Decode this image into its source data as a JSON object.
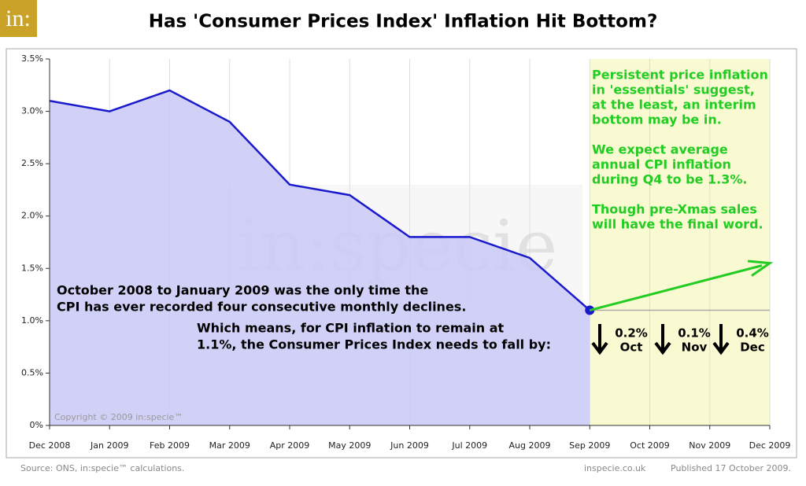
{
  "logo": "in:",
  "chart_data": {
    "type": "line",
    "title": "Has 'Consumer Prices Index' Inflation Hit Bottom?",
    "categories": [
      "Dec 2008",
      "Jan 2009",
      "Feb 2009",
      "Mar 2009",
      "Apr 2009",
      "May 2009",
      "Jun 2009",
      "Jul 2009",
      "Aug 2009",
      "Sep 2009",
      "Oct 2009",
      "Nov 2009",
      "Dec 2009"
    ],
    "series": [
      {
        "color": "#1a1acc",
        "fill": "#ccccf7",
        "values": [
          3.1,
          3.0,
          3.2,
          2.9,
          2.3,
          2.2,
          1.8,
          1.8,
          1.6,
          1.1,
          null,
          null,
          null
        ]
      }
    ],
    "ylim": [
      0,
      3.5
    ],
    "yticks": [
      {
        "value": 0,
        "label": "0%"
      },
      {
        "value": 0.5,
        "label": "0.5%"
      },
      {
        "value": 1,
        "label": "1.0%"
      },
      {
        "value": 1.5,
        "label": "1.5%"
      },
      {
        "value": 2,
        "label": "2.0%"
      },
      {
        "value": 2.5,
        "label": "2.5%"
      },
      {
        "value": 3,
        "label": "3.0%"
      },
      {
        "value": 3.5,
        "label": "3.5%"
      }
    ],
    "grid": true,
    "forecast_region": {
      "from": "Sep 2009",
      "to": "Dec 2009",
      "color": "#fafad2"
    },
    "projection": {
      "x": [
        "Sep 2009",
        "Dec 2009"
      ],
      "values": [
        1.1,
        1.55
      ],
      "color": "#22cc22"
    },
    "annotations": {
      "history": [
        "October 2008 to January 2009 was the only time the",
        "CPI has ever recorded four consecutive monthly declines."
      ],
      "requirement": [
        "Which means, for CPI inflation to remain at",
        "1.1%, the Consumer Prices Index needs to fall by:"
      ],
      "forecast": [
        "Persistent price inflation",
        "in 'essentials' suggest,",
        "at the least, an interim",
        "bottom may be in.",
        "",
        "We expect average",
        "annual CPI inflation",
        "during Q4 to be 1.3%.",
        "",
        "Though pre-Xmas sales",
        "will have the final word."
      ],
      "falls": [
        {
          "amount": "0.2%",
          "month": "Oct"
        },
        {
          "amount": "0.1%",
          "month": "Nov"
        },
        {
          "amount": "0.4%",
          "month": "Dec"
        }
      ],
      "copyright": "Copyright © 2009 in:specie™",
      "watermark": "in:specie"
    }
  },
  "footer": {
    "source": "Source: ONS, in:specie™ calculations.",
    "site": "inspecie.co.uk",
    "published": "Published 17 October 2009."
  }
}
